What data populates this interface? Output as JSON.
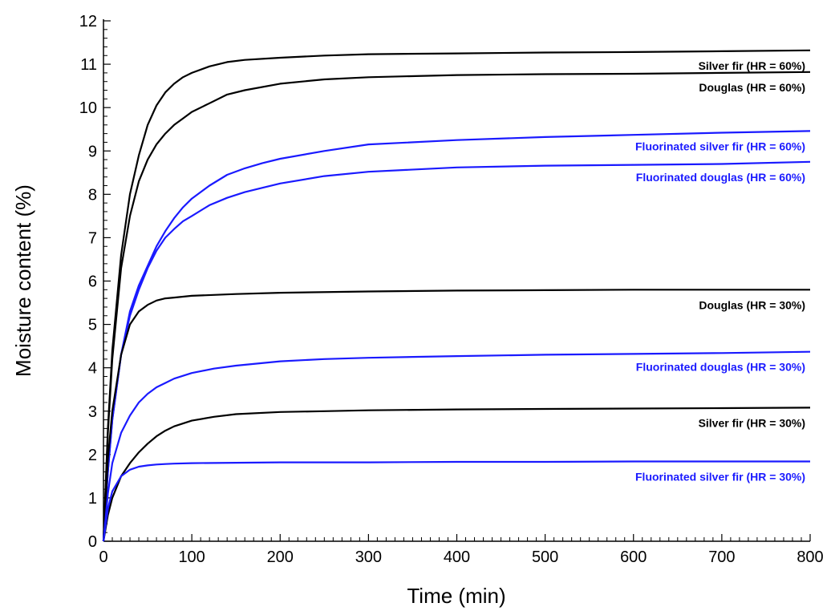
{
  "chart_data": {
    "type": "line",
    "title": "",
    "xlabel": "Time (min)",
    "ylabel": "Moisture content (%)",
    "xlim": [
      0,
      800
    ],
    "ylim": [
      0,
      12
    ],
    "x_ticks": [
      0,
      100,
      200,
      300,
      400,
      500,
      600,
      700,
      800
    ],
    "y_ticks": [
      0,
      1,
      2,
      3,
      4,
      5,
      6,
      7,
      8,
      9,
      10,
      11,
      12
    ],
    "grid": false,
    "legend": "none (series labelled directly at right end)",
    "colors": {
      "untreated": "#000000",
      "fluorinated": "#1a1aff"
    },
    "series": [
      {
        "name": "Silver fir (HR = 60%)",
        "color": "#000000",
        "x": [
          0,
          5,
          10,
          20,
          30,
          40,
          50,
          60,
          70,
          80,
          90,
          100,
          120,
          140,
          160,
          200,
          250,
          300,
          400,
          500,
          600,
          700,
          800
        ],
        "y": [
          0,
          2.6,
          4.4,
          6.6,
          8.0,
          8.9,
          9.6,
          10.05,
          10.35,
          10.55,
          10.7,
          10.8,
          10.95,
          11.05,
          11.1,
          11.15,
          11.2,
          11.23,
          11.25,
          11.27,
          11.28,
          11.3,
          11.32
        ]
      },
      {
        "name": "Douglas (HR = 60%)",
        "color": "#000000",
        "x": [
          0,
          5,
          10,
          20,
          30,
          40,
          50,
          60,
          70,
          80,
          90,
          100,
          120,
          140,
          160,
          200,
          250,
          300,
          400,
          500,
          600,
          700,
          800
        ],
        "y": [
          0,
          2.5,
          4.2,
          6.3,
          7.5,
          8.3,
          8.8,
          9.15,
          9.4,
          9.6,
          9.75,
          9.9,
          10.1,
          10.3,
          10.4,
          10.55,
          10.65,
          10.7,
          10.75,
          10.77,
          10.78,
          10.8,
          10.82
        ]
      },
      {
        "name": "Fluorinated silver fir (HR = 60%)",
        "color": "#1a1aff",
        "x": [
          0,
          5,
          10,
          20,
          30,
          40,
          50,
          60,
          70,
          80,
          90,
          100,
          120,
          140,
          160,
          180,
          200,
          250,
          300,
          400,
          500,
          600,
          700,
          800
        ],
        "y": [
          0,
          1.6,
          2.8,
          4.3,
          5.3,
          5.9,
          6.35,
          6.8,
          7.15,
          7.45,
          7.7,
          7.9,
          8.2,
          8.45,
          8.6,
          8.72,
          8.82,
          9.0,
          9.15,
          9.25,
          9.32,
          9.37,
          9.42,
          9.46
        ]
      },
      {
        "name": "Fluorinated douglas (HR = 60%)",
        "color": "#1a1aff",
        "x": [
          0,
          5,
          10,
          20,
          30,
          40,
          50,
          60,
          70,
          80,
          90,
          100,
          120,
          140,
          160,
          180,
          200,
          250,
          300,
          400,
          500,
          600,
          700,
          800
        ],
        "y": [
          0,
          1.6,
          2.8,
          4.3,
          5.2,
          5.8,
          6.3,
          6.7,
          7.0,
          7.2,
          7.38,
          7.5,
          7.75,
          7.92,
          8.05,
          8.15,
          8.25,
          8.42,
          8.52,
          8.62,
          8.66,
          8.68,
          8.7,
          8.75
        ]
      },
      {
        "name": "Douglas (HR = 30%)",
        "color": "#000000",
        "x": [
          0,
          5,
          10,
          20,
          30,
          40,
          50,
          60,
          70,
          80,
          90,
          100,
          150,
          200,
          300,
          400,
          500,
          600,
          700,
          800
        ],
        "y": [
          0,
          1.9,
          3.0,
          4.3,
          5.0,
          5.3,
          5.45,
          5.55,
          5.6,
          5.62,
          5.64,
          5.66,
          5.7,
          5.73,
          5.76,
          5.78,
          5.79,
          5.8,
          5.8,
          5.8
        ]
      },
      {
        "name": "Fluorinated douglas (HR = 30%)",
        "color": "#1a1aff",
        "x": [
          0,
          5,
          10,
          20,
          30,
          40,
          50,
          60,
          70,
          80,
          100,
          125,
          150,
          200,
          250,
          300,
          400,
          500,
          600,
          700,
          800
        ],
        "y": [
          0,
          1.1,
          1.8,
          2.5,
          2.9,
          3.2,
          3.4,
          3.55,
          3.65,
          3.75,
          3.88,
          3.98,
          4.05,
          4.15,
          4.2,
          4.23,
          4.27,
          4.3,
          4.32,
          4.34,
          4.37
        ]
      },
      {
        "name": "Silver fir (HR = 30%)",
        "color": "#000000",
        "x": [
          0,
          5,
          10,
          20,
          30,
          40,
          50,
          60,
          70,
          80,
          100,
          125,
          150,
          200,
          250,
          300,
          400,
          500,
          600,
          700,
          800
        ],
        "y": [
          0,
          0.6,
          1.0,
          1.5,
          1.8,
          2.05,
          2.25,
          2.42,
          2.55,
          2.65,
          2.78,
          2.87,
          2.93,
          2.98,
          3.0,
          3.02,
          3.04,
          3.05,
          3.06,
          3.07,
          3.08
        ]
      },
      {
        "name": "Fluorinated silver fir (HR = 30%)",
        "color": "#1a1aff",
        "x": [
          0,
          5,
          10,
          20,
          30,
          40,
          50,
          60,
          70,
          80,
          100,
          150,
          200,
          300,
          400,
          500,
          600,
          700,
          800
        ],
        "y": [
          0,
          0.75,
          1.15,
          1.5,
          1.65,
          1.72,
          1.75,
          1.77,
          1.78,
          1.79,
          1.8,
          1.81,
          1.82,
          1.82,
          1.83,
          1.83,
          1.84,
          1.84,
          1.84
        ]
      }
    ]
  }
}
